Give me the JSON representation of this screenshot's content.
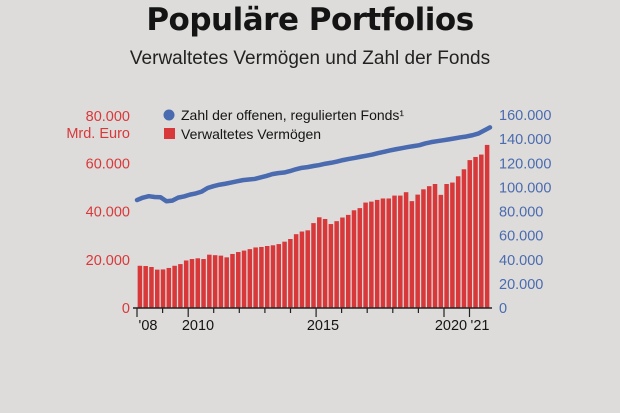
{
  "title": "Populäre Portfolios",
  "subtitle": "Verwaltetes Vermögen und Zahl der Fonds",
  "colors": {
    "background": "#dddcda",
    "bars": "#d9383a",
    "line": "#4a6bb0",
    "left_axis": "#d9383a",
    "right_axis": "#4a6bb0",
    "text": "#141414"
  },
  "chart_data": {
    "type": "bar",
    "title": "Populäre Portfolios",
    "subtitle": "Verwaltetes Vermögen und Zahl der Fonds",
    "x_tick_labels": [
      "'08",
      "2010",
      "2015",
      "2020",
      "'21"
    ],
    "left_axis": {
      "unit_label": "Mrd. Euro",
      "ylim": [
        0,
        80000
      ],
      "ticks": [
        "0",
        "20.000",
        "40.000",
        "60.000",
        "80.000"
      ]
    },
    "right_axis": {
      "ylim": [
        0,
        160000
      ],
      "ticks": [
        "0",
        "20.000",
        "40.000",
        "60.000",
        "80.000",
        "100.000",
        "120.000",
        "140.000",
        "160.000"
      ]
    },
    "legend": {
      "position": "top",
      "items": [
        "Zahl der offenen, regulierten Fonds¹",
        "Verwaltetes Vermögen"
      ]
    },
    "series": [
      {
        "name": "Verwaltetes Vermögen",
        "type": "bar",
        "axis": "left",
        "values": [
          17500,
          17400,
          17000,
          15900,
          16000,
          16600,
          17500,
          18200,
          19700,
          20300,
          20600,
          20300,
          22100,
          21900,
          21700,
          21000,
          22400,
          23200,
          23800,
          24400,
          25100,
          25300,
          25700,
          26000,
          26500,
          27500,
          28600,
          30600,
          31700,
          32200,
          35200,
          37600,
          36900,
          34800,
          36000,
          37500,
          38600,
          40500,
          41400,
          43700,
          44100,
          44800,
          45400,
          45400,
          46600,
          46600,
          48000,
          44300,
          47000,
          49200,
          50500,
          51400,
          46900,
          51400,
          52000,
          54600,
          57500,
          61300,
          62600,
          63600,
          67600
        ]
      },
      {
        "name": "Zahl der offenen, regulierten Fonds¹",
        "type": "line",
        "axis": "right",
        "values": [
          89500,
          91500,
          92700,
          92000,
          91800,
          88500,
          89000,
          91500,
          92500,
          94000,
          95000,
          96500,
          99500,
          101000,
          102200,
          103000,
          104000,
          105000,
          106000,
          106500,
          107000,
          108200,
          109500,
          111000,
          111800,
          112300,
          113500,
          115000,
          116200,
          116800,
          117700,
          118500,
          119600,
          120400,
          121400,
          122600,
          123600,
          124400,
          125400,
          126300,
          127200,
          128400,
          129500,
          130600,
          131600,
          132500,
          133400,
          134200,
          135000,
          136400,
          137500,
          138300,
          139000,
          139800,
          140600,
          141500,
          142200,
          143200,
          144600,
          147100,
          149700
        ]
      }
    ],
    "grid": false
  }
}
